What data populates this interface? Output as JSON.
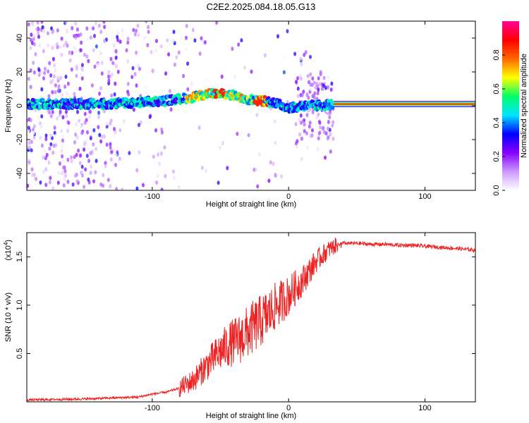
{
  "title": "C2E2.2025.084.18.05.G13",
  "chart_data": [
    {
      "type": "heatmap",
      "xlabel": "Height of straight line (km)",
      "ylabel": "Frequency (Hz)",
      "xlim": [
        -192,
        137
      ],
      "ylim": [
        -50,
        50
      ],
      "x_ticks": [
        -100,
        0,
        100
      ],
      "y_ticks": [
        -40,
        -20,
        0,
        20,
        40
      ],
      "colorbar": {
        "label": "Normalized spectral amplitude",
        "ticks": [
          "0.0",
          "0.2",
          "0.4",
          "0.6",
          "0.8"
        ],
        "range": [
          0,
          1
        ],
        "colors": [
          "#ffffff",
          "#cc99ff",
          "#8800ff",
          "#0000ff",
          "#00e5ff",
          "#00ff66",
          "#ffff00",
          "#ff6600",
          "#ff0000",
          "#ff0099"
        ]
      },
      "ridge": {
        "x": [
          -192,
          -160,
          -130,
          -110,
          -90,
          -70,
          -60,
          -50,
          -40,
          -30,
          -20,
          -10,
          -5,
          0,
          5,
          10,
          20,
          33,
          137
        ],
        "y": [
          1,
          1,
          1,
          2,
          3,
          5,
          7,
          7,
          6,
          4,
          3,
          2,
          0,
          -1,
          -1,
          0,
          0,
          1,
          1
        ]
      }
    },
    {
      "type": "line",
      "xlabel": "Height of straight line (km)",
      "ylabel": "SNR (10 * v/v)",
      "scale_note": "(x10",
      "scale_exp": "4",
      "scale_close": ")",
      "xlim": [
        -192,
        137
      ],
      "ylim": [
        0,
        1.75
      ],
      "x_ticks": [
        -100,
        0,
        100
      ],
      "y_ticks": [
        "0.5",
        "1.0",
        "1.5"
      ],
      "color": "#ee2222",
      "series": [
        {
          "x": [
            -192,
            -150,
            -110,
            -100,
            -90,
            -80,
            -75,
            -70,
            -65,
            -60,
            -55,
            -50,
            -45,
            -40,
            -35,
            -30,
            -25,
            -20,
            -15,
            -10,
            -5,
            0,
            5,
            10,
            15,
            20,
            25,
            30,
            35,
            40,
            50,
            60,
            70,
            80,
            90,
            100,
            110,
            120,
            137
          ],
          "y": [
            0.02,
            0.03,
            0.05,
            0.08,
            0.1,
            0.14,
            0.18,
            0.22,
            0.3,
            0.38,
            0.45,
            0.52,
            0.58,
            0.62,
            0.66,
            0.72,
            0.78,
            0.84,
            0.9,
            0.98,
            1.04,
            1.1,
            1.18,
            1.25,
            1.35,
            1.45,
            1.52,
            1.58,
            1.62,
            1.64,
            1.64,
            1.63,
            1.63,
            1.62,
            1.62,
            1.61,
            1.6,
            1.59,
            1.57
          ]
        }
      ]
    }
  ]
}
